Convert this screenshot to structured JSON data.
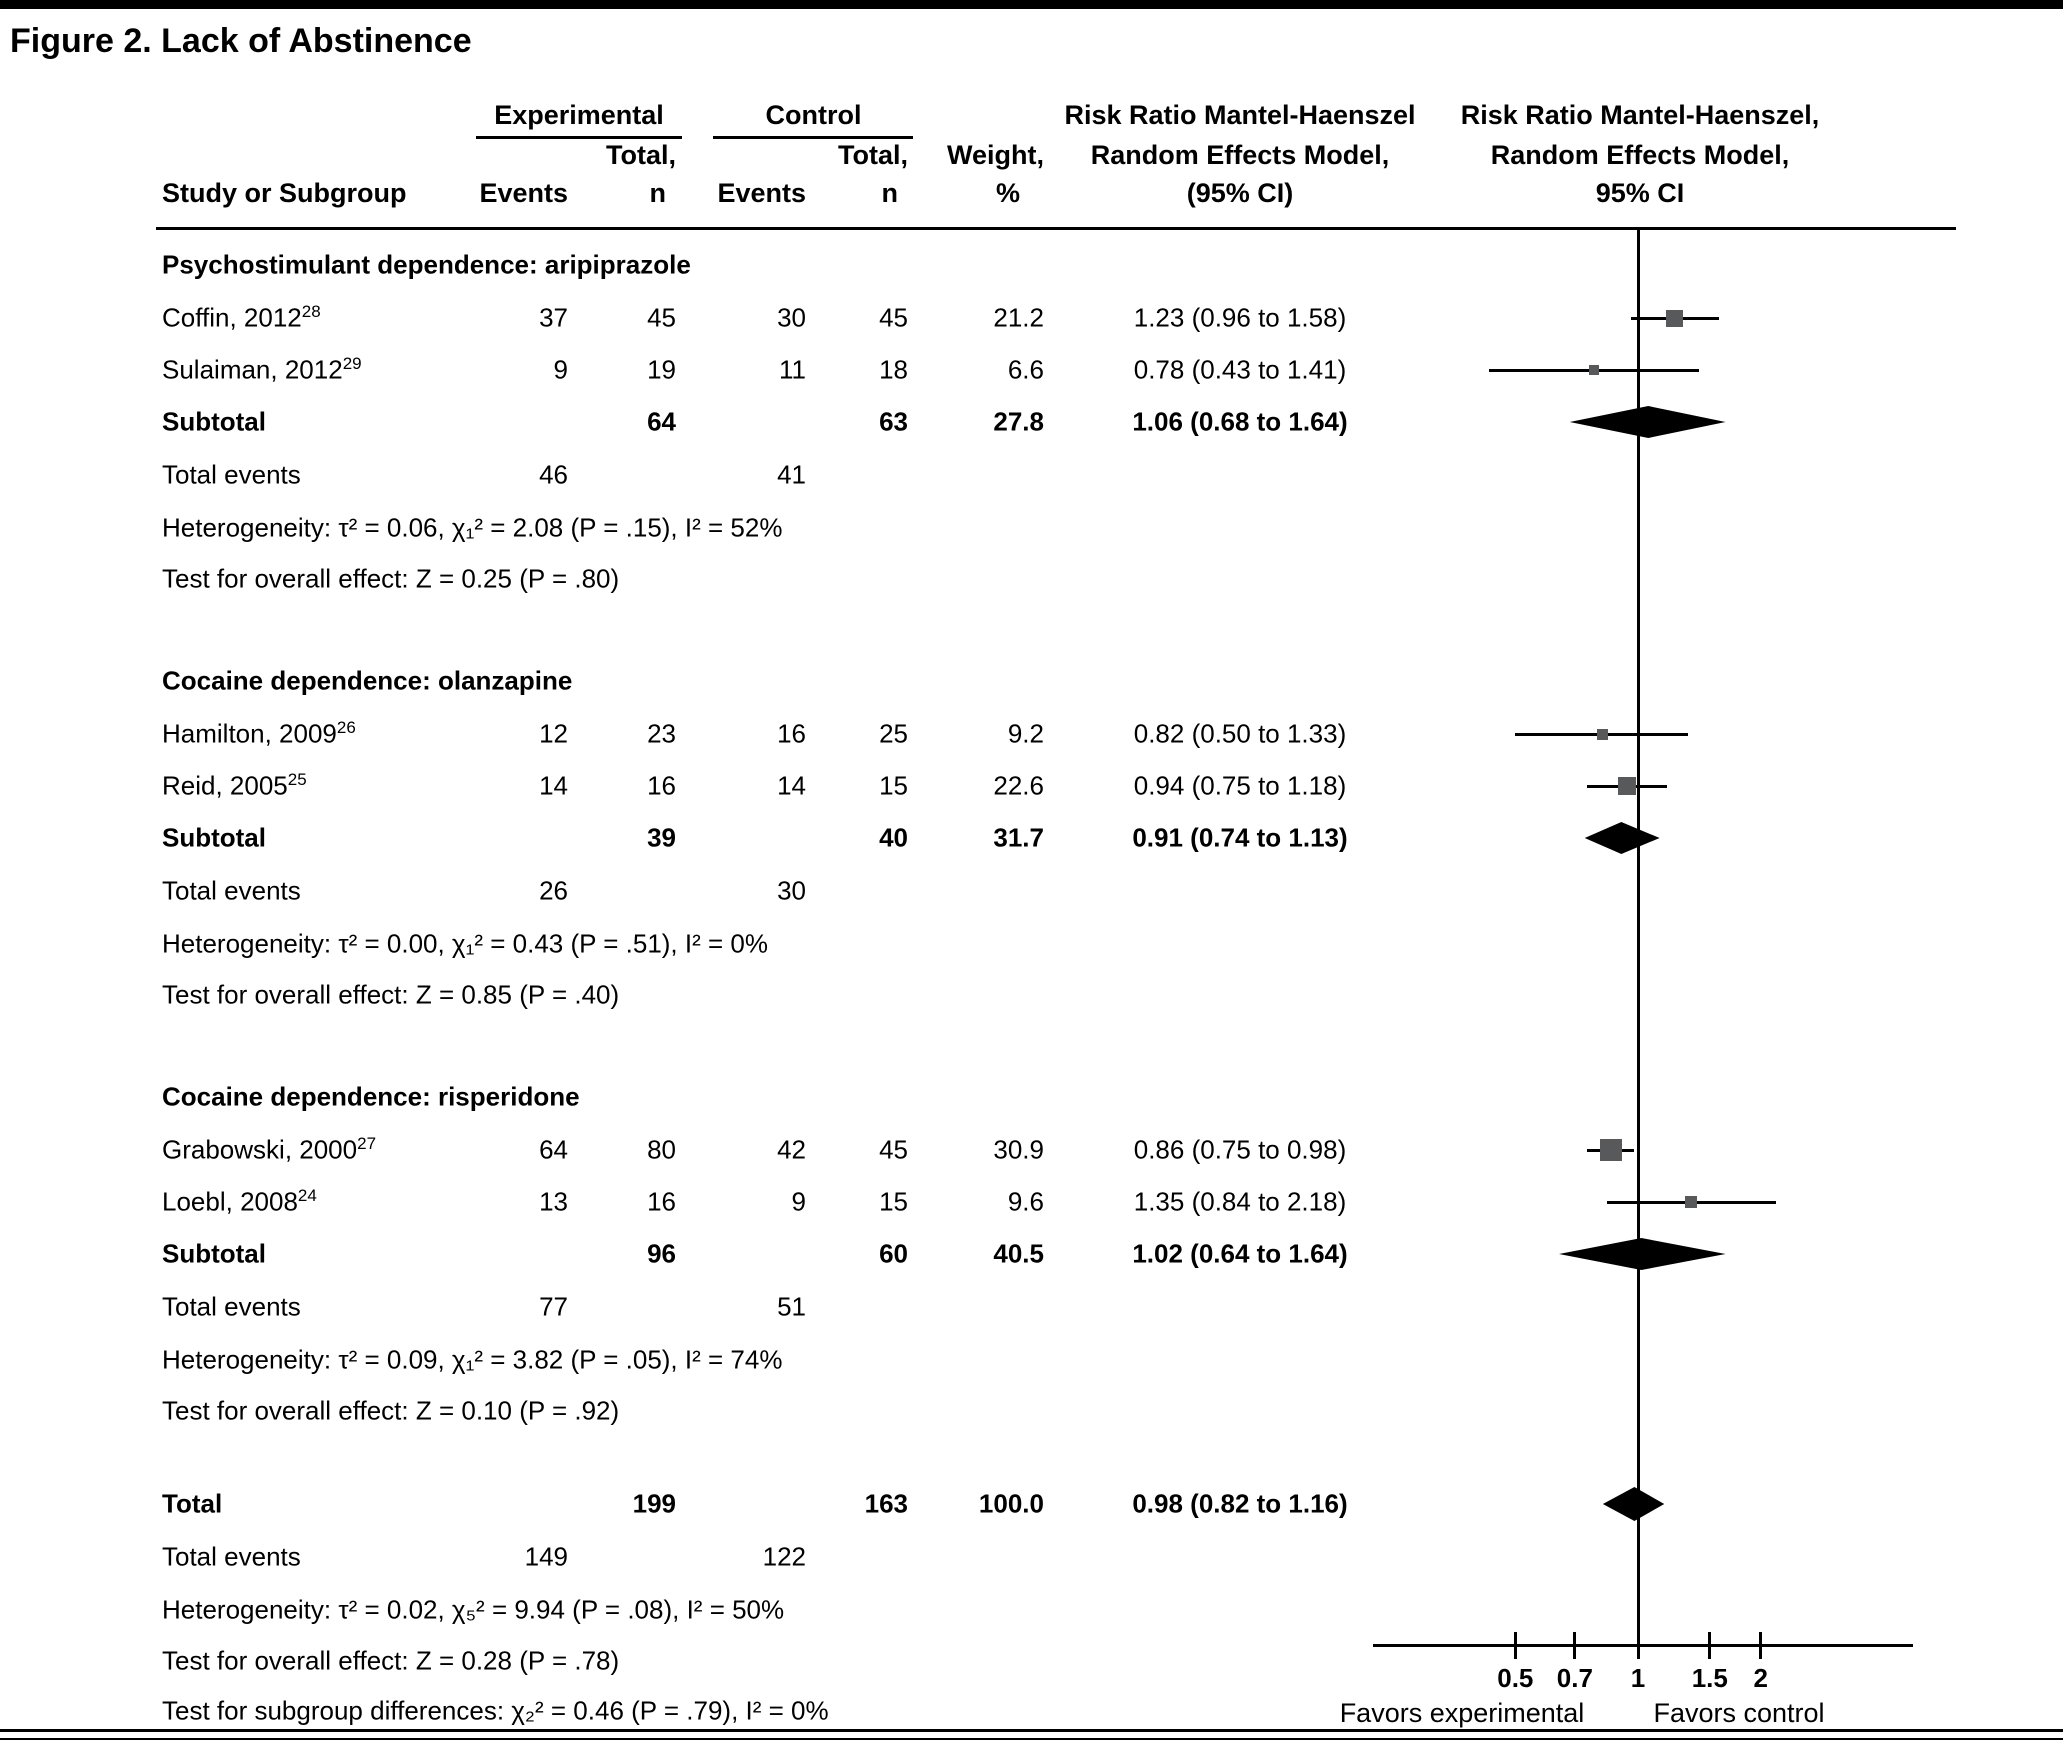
{
  "figure": {
    "title": "Figure 2. Lack of Abstinence"
  },
  "header": {
    "study": "Study or Subgroup",
    "experimental": "Experimental",
    "control": "Control",
    "events": "Events",
    "total_line1": "Total,",
    "total_line2": "n",
    "weight_line1": "Weight,",
    "weight_line2": "%",
    "rr_col": [
      "Risk Ratio Mantel-Haenszel",
      "Random Effects Model,",
      "(95% CI)"
    ],
    "rr_plot": [
      "Risk Ratio Mantel-Haenszel,",
      "Random Effects Model,",
      "95% CI"
    ]
  },
  "labels": {
    "subtotal": "Subtotal",
    "total": "Total",
    "total_events": "Total events"
  },
  "axis": {
    "ticks": [
      "0.5",
      "0.7",
      "1",
      "1.5",
      "2"
    ],
    "tick_values": [
      0.5,
      0.7,
      1,
      1.5,
      2
    ],
    "favors_left": "Favors experimental",
    "favors_right": "Favors control"
  },
  "colors": {
    "marker": "#58595b",
    "line": "#000000"
  },
  "chart_data": {
    "type": "forest",
    "x_scale": "log",
    "x_ticks": [
      0.5,
      0.7,
      1,
      1.5,
      2
    ],
    "groups": [
      {
        "label": "Psychostimulant dependence: aripiprazole",
        "studies": [
          {
            "study": "Coffin, 2012",
            "ref": "28",
            "exp_events": "37",
            "exp_total": "45",
            "ctl_events": "30",
            "ctl_total": "45",
            "weight": "21.2",
            "rr_label": "1.23 (0.96 to 1.58)",
            "rr": 1.23,
            "lo": 0.96,
            "hi": 1.58
          },
          {
            "study": "Sulaiman, 2012",
            "ref": "29",
            "exp_events": "9",
            "exp_total": "19",
            "ctl_events": "11",
            "ctl_total": "18",
            "weight": "6.6",
            "rr_label": "0.78 (0.43 to 1.41)",
            "rr": 0.78,
            "lo": 0.43,
            "hi": 1.41
          }
        ],
        "subtotal": {
          "exp_total": "64",
          "ctl_total": "63",
          "weight": "27.8",
          "rr_label": "1.06 (0.68 to 1.64)",
          "rr": 1.06,
          "lo": 0.68,
          "hi": 1.64
        },
        "total_events": {
          "exp": "46",
          "ctl": "41"
        },
        "heterogeneity": "Heterogeneity: τ² = 0.06, χ₁² = 2.08 (P = .15), I² = 52%",
        "overall_effect": "Test for overall effect: Z = 0.25 (P = .80)"
      },
      {
        "label": "Cocaine dependence: olanzapine",
        "studies": [
          {
            "study": "Hamilton, 2009",
            "ref": "26",
            "exp_events": "12",
            "exp_total": "23",
            "ctl_events": "16",
            "ctl_total": "25",
            "weight": "9.2",
            "rr_label": "0.82 (0.50 to 1.33)",
            "rr": 0.82,
            "lo": 0.5,
            "hi": 1.33
          },
          {
            "study": "Reid, 2005",
            "ref": "25",
            "exp_events": "14",
            "exp_total": "16",
            "ctl_events": "14",
            "ctl_total": "15",
            "weight": "22.6",
            "rr_label": "0.94 (0.75 to 1.18)",
            "rr": 0.94,
            "lo": 0.75,
            "hi": 1.18
          }
        ],
        "subtotal": {
          "exp_total": "39",
          "ctl_total": "40",
          "weight": "31.7",
          "rr_label": "0.91 (0.74 to 1.13)",
          "rr": 0.91,
          "lo": 0.74,
          "hi": 1.13
        },
        "total_events": {
          "exp": "26",
          "ctl": "30"
        },
        "heterogeneity": "Heterogeneity: τ² = 0.00, χ₁² = 0.43 (P = .51), I² = 0%",
        "overall_effect": "Test for overall effect: Z = 0.85 (P = .40)"
      },
      {
        "label": "Cocaine dependence: risperidone",
        "studies": [
          {
            "study": "Grabowski, 2000",
            "ref": "27",
            "exp_events": "64",
            "exp_total": "80",
            "ctl_events": "42",
            "ctl_total": "45",
            "weight": "30.9",
            "rr_label": "0.86 (0.75 to 0.98)",
            "rr": 0.86,
            "lo": 0.75,
            "hi": 0.98
          },
          {
            "study": "Loebl, 2008",
            "ref": "24",
            "exp_events": "13",
            "exp_total": "16",
            "ctl_events": "9",
            "ctl_total": "15",
            "weight": "9.6",
            "rr_label": "1.35 (0.84 to 2.18)",
            "rr": 1.35,
            "lo": 0.84,
            "hi": 2.18
          }
        ],
        "subtotal": {
          "exp_total": "96",
          "ctl_total": "60",
          "weight": "40.5",
          "rr_label": "1.02 (0.64 to 1.64)",
          "rr": 1.02,
          "lo": 0.64,
          "hi": 1.64
        },
        "total_events": {
          "exp": "77",
          "ctl": "51"
        },
        "heterogeneity": "Heterogeneity: τ² = 0.09, χ₁² = 3.82 (P = .05), I² = 74%",
        "overall_effect": "Test for overall effect: Z = 0.10 (P = .92)"
      }
    ],
    "total": {
      "exp_total": "199",
      "ctl_total": "163",
      "weight": "100.0",
      "rr_label": "0.98 (0.82 to 1.16)",
      "rr": 0.98,
      "lo": 0.82,
      "hi": 1.16,
      "total_events": {
        "exp": "149",
        "ctl": "122"
      },
      "heterogeneity": "Heterogeneity: τ² = 0.02, χ₅² = 9.94 (P = .08), I² = 50%",
      "overall_effect": "Test for overall effect: Z = 0.28 (P = .78)",
      "subgroup_differences": "Test for subgroup differences: χ₂² = 0.46 (P = .79), I² = 0%"
    }
  }
}
